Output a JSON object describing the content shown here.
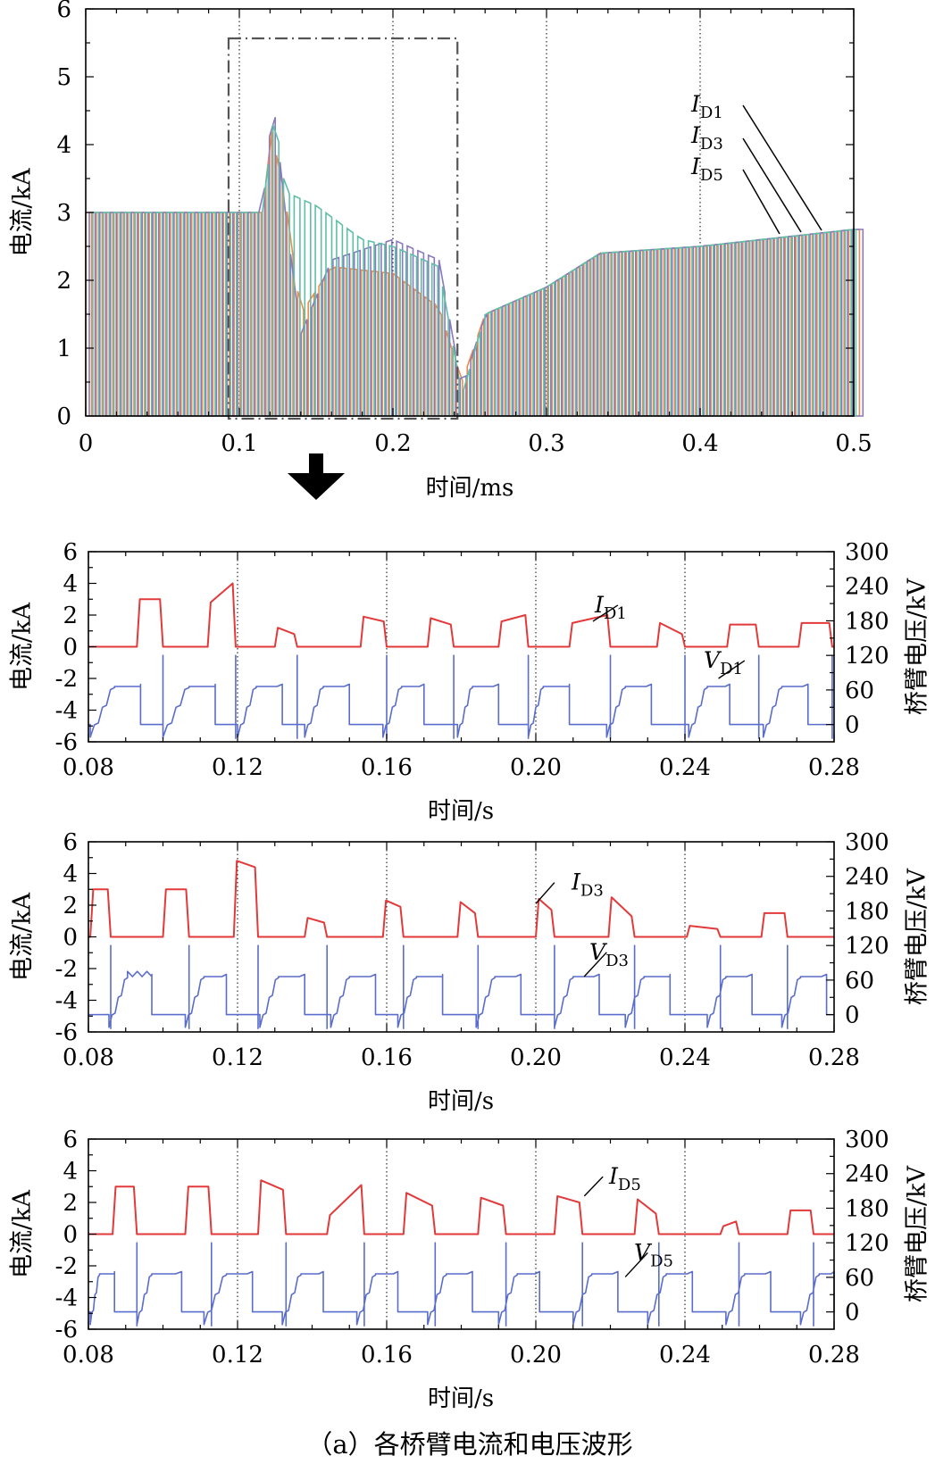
{
  "colors": {
    "red": "#e23a3a",
    "blue": "#5a6ccc",
    "orange": "#f08a4b",
    "green": "#5fbfa6",
    "purple": "#8a78c2"
  },
  "arrow_icon": "down-arrow-icon",
  "caption": "（a）各桥臂电流和电压波形",
  "chart_data": [
    {
      "type": "line",
      "xlabel": "时间/ms",
      "ylabel": "电流/kA",
      "xlim": [
        0,
        0.5
      ],
      "ylim": [
        0,
        6
      ],
      "xticks": [
        "0",
        "0.1",
        "0.2",
        "0.3",
        "0.4",
        "0.5"
      ],
      "yticks": [
        "0",
        "1",
        "2",
        "3",
        "4",
        "5",
        "6"
      ],
      "vlines": [
        0.1,
        0.2,
        0.3,
        0.4
      ],
      "highlight_box": [
        0.093,
        0.242
      ],
      "annotations": [
        {
          "base": "I",
          "sub": "D1"
        },
        {
          "base": "I",
          "sub": "D3"
        },
        {
          "base": "I",
          "sub": "D5"
        }
      ],
      "series": [
        {
          "name": "I_D1",
          "color": "orange",
          "envelope": [
            [
              0,
              3
            ],
            [
              0.115,
              3
            ],
            [
              0.121,
              4.2
            ],
            [
              0.13,
              3.2
            ],
            [
              0.14,
              1.5
            ],
            [
              0.16,
              2.2
            ],
            [
              0.2,
              2.1
            ],
            [
              0.23,
              1.6
            ],
            [
              0.245,
              0.5
            ],
            [
              0.26,
              1.5
            ],
            [
              0.3,
              1.9
            ],
            [
              0.335,
              2.4
            ],
            [
              0.4,
              2.5
            ],
            [
              0.5,
              2.75
            ]
          ]
        },
        {
          "name": "I_D3",
          "color": "purple",
          "envelope": [
            [
              0,
              3
            ],
            [
              0.115,
              3
            ],
            [
              0.122,
              4.7
            ],
            [
              0.13,
              3.0
            ],
            [
              0.14,
              1.2
            ],
            [
              0.16,
              2.3
            ],
            [
              0.2,
              2.6
            ],
            [
              0.23,
              2.3
            ],
            [
              0.245,
              0.4
            ],
            [
              0.26,
              1.5
            ],
            [
              0.3,
              1.9
            ],
            [
              0.335,
              2.4
            ],
            [
              0.4,
              2.5
            ],
            [
              0.5,
              2.75
            ]
          ]
        },
        {
          "name": "I_D5",
          "color": "green",
          "envelope": [
            [
              0,
              3
            ],
            [
              0.115,
              3
            ],
            [
              0.123,
              4.5
            ],
            [
              0.13,
              3.3
            ],
            [
              0.15,
              3.1
            ],
            [
              0.18,
              2.6
            ],
            [
              0.2,
              2.5
            ],
            [
              0.23,
              2.2
            ],
            [
              0.245,
              0.3
            ],
            [
              0.26,
              1.5
            ],
            [
              0.3,
              1.9
            ],
            [
              0.335,
              2.4
            ],
            [
              0.4,
              2.5
            ],
            [
              0.5,
              2.75
            ]
          ]
        }
      ]
    },
    {
      "type": "line",
      "xlabel": "时间/s",
      "ylabel": "电流/kA",
      "ylabel_right": "桥臂电压/kV",
      "xlim": [
        0.08,
        0.28
      ],
      "ylim": [
        -6,
        6
      ],
      "ylim_right": [
        -30,
        300
      ],
      "xticks": [
        "0.08",
        "0.12",
        "0.16",
        "0.20",
        "0.24",
        "0.28"
      ],
      "yticks": [
        "-6",
        "-4",
        "-2",
        "0",
        "2",
        "4",
        "6"
      ],
      "yticks_right": [
        "0",
        "60",
        "120",
        "180",
        "240",
        "300"
      ],
      "vlines": [
        0.12,
        0.16,
        0.2,
        0.24
      ],
      "current_label": {
        "base": "I",
        "sub": "D1"
      },
      "voltage_label": {
        "base": "V",
        "sub": "D1"
      },
      "current_pulses": [
        [
          0.093,
          0.1,
          3,
          3
        ],
        [
          0.112,
          0.1195,
          2.8,
          4
        ],
        [
          0.13,
          0.136,
          1.2,
          0.8
        ],
        [
          0.153,
          0.16,
          1.9,
          1.6
        ],
        [
          0.171,
          0.178,
          1.8,
          1.4
        ],
        [
          0.19,
          0.198,
          1.6,
          2
        ],
        [
          0.209,
          0.22,
          1.5,
          2
        ],
        [
          0.2325,
          0.24,
          1.5,
          0.8
        ],
        [
          0.2513,
          0.2598,
          1.4,
          1.4
        ],
        [
          0.2705,
          0.2795,
          1.5,
          1.5
        ]
      ],
      "voltage_ramps": [
        [
          0.0805,
          0.087,
          0.094
        ],
        [
          0.1,
          0.107,
          0.114
        ],
        [
          0.12,
          0.125,
          0.132
        ],
        [
          0.138,
          0.143,
          0.15
        ],
        [
          0.159,
          0.164,
          0.17
        ],
        [
          0.179,
          0.183,
          0.19
        ],
        [
          0.198,
          0.202,
          0.209
        ],
        [
          0.219,
          0.224,
          0.231
        ],
        [
          0.241,
          0.246,
          0.252
        ],
        [
          0.261,
          0.266,
          0.273
        ]
      ],
      "current_series": {
        "name": "I_D1",
        "color": "red"
      },
      "voltage_series": {
        "name": "V_D1",
        "color": "blue"
      }
    },
    {
      "type": "line",
      "xlabel": "时间/s",
      "ylabel": "电流/kA",
      "ylabel_right": "桥臂电压/kV",
      "xlim": [
        0.08,
        0.28
      ],
      "ylim": [
        -6,
        6
      ],
      "ylim_right": [
        -30,
        300
      ],
      "xticks": [
        "0.08",
        "0.12",
        "0.16",
        "0.20",
        "0.24",
        "0.28"
      ],
      "yticks": [
        "-6",
        "-4",
        "-2",
        "0",
        "2",
        "4",
        "6"
      ],
      "yticks_right": [
        "0",
        "60",
        "120",
        "180",
        "240",
        "300"
      ],
      "vlines": [
        0.12,
        0.16,
        0.2,
        0.24
      ],
      "current_label": {
        "base": "I",
        "sub": "D3"
      },
      "voltage_label": {
        "base": "V",
        "sub": "D3"
      },
      "current_pulses": [
        [
          0.0805,
          0.086,
          3,
          3
        ],
        [
          0.1,
          0.107,
          3,
          3
        ],
        [
          0.119,
          0.1255,
          4.8,
          4.4
        ],
        [
          0.138,
          0.144,
          1.2,
          0.9
        ],
        [
          0.159,
          0.1645,
          2.3,
          1.9
        ],
        [
          0.179,
          0.1845,
          2.2,
          1.5
        ],
        [
          0.2,
          0.205,
          2.4,
          1.7
        ],
        [
          0.2195,
          0.2265,
          2.5,
          1.3
        ],
        [
          0.2405,
          0.2495,
          0.7,
          0.5
        ],
        [
          0.2605,
          0.2675,
          1.5,
          1.5
        ]
      ],
      "voltage_ramps": [
        [
          0.0855,
          0.0905,
          0.097
        ],
        [
          0.106,
          0.111,
          0.117
        ],
        [
          0.126,
          0.131,
          0.138
        ],
        [
          0.145,
          0.15,
          0.157
        ],
        [
          0.163,
          0.168,
          0.175
        ],
        [
          0.184,
          0.189,
          0.196
        ],
        [
          0.205,
          0.21,
          0.217
        ],
        [
          0.224,
          0.229,
          0.236
        ],
        [
          0.246,
          0.251,
          0.258
        ],
        [
          0.266,
          0.271,
          0.278
        ]
      ],
      "current_series": {
        "name": "I_D3",
        "color": "red"
      },
      "voltage_series": {
        "name": "V_D3",
        "color": "blue"
      }
    },
    {
      "type": "line",
      "xlabel": "时间/s",
      "ylabel": "电流/kA",
      "ylabel_right": "桥臂电压/kV",
      "xlim": [
        0.08,
        0.28
      ],
      "ylim": [
        -6,
        6
      ],
      "ylim_right": [
        -30,
        300
      ],
      "xticks": [
        "0.08",
        "0.12",
        "0.16",
        "0.20",
        "0.24",
        "0.28"
      ],
      "yticks": [
        "-6",
        "-4",
        "-2",
        "0",
        "2",
        "4",
        "6"
      ],
      "yticks_right": [
        "0",
        "60",
        "120",
        "180",
        "240",
        "300"
      ],
      "vlines": [
        0.12,
        0.16,
        0.2,
        0.24
      ],
      "current_label": {
        "base": "I",
        "sub": "D5"
      },
      "voltage_label": {
        "base": "V",
        "sub": "D5"
      },
      "current_pulses": [
        [
          0.0865,
          0.093,
          3,
          3
        ],
        [
          0.106,
          0.113,
          3,
          3
        ],
        [
          0.1255,
          0.133,
          3.4,
          2.8
        ],
        [
          0.144,
          0.154,
          1.2,
          3.1
        ],
        [
          0.1645,
          0.173,
          2.6,
          1.8
        ],
        [
          0.1845,
          0.192,
          2.3,
          1.8
        ],
        [
          0.205,
          0.2125,
          2.4,
          2
        ],
        [
          0.2265,
          0.233,
          2.2,
          1.3
        ],
        [
          0.2495,
          0.2545,
          0.5,
          0.8
        ],
        [
          0.2675,
          0.2745,
          1.5,
          1.5
        ]
      ],
      "voltage_ramps": [
        [
          0.0805,
          0.083,
          0.087
        ],
        [
          0.093,
          0.097,
          0.105
        ],
        [
          0.111,
          0.117,
          0.124
        ],
        [
          0.132,
          0.137,
          0.143
        ],
        [
          0.152,
          0.157,
          0.163
        ],
        [
          0.171,
          0.176,
          0.183
        ],
        [
          0.19,
          0.195,
          0.201
        ],
        [
          0.21,
          0.215,
          0.222
        ],
        [
          0.23,
          0.235,
          0.242
        ],
        [
          0.251,
          0.256,
          0.263
        ],
        [
          0.271,
          0.276,
          0.28
        ]
      ],
      "current_series": {
        "name": "I_D5",
        "color": "red"
      },
      "voltage_series": {
        "name": "V_D5",
        "color": "blue"
      }
    }
  ]
}
